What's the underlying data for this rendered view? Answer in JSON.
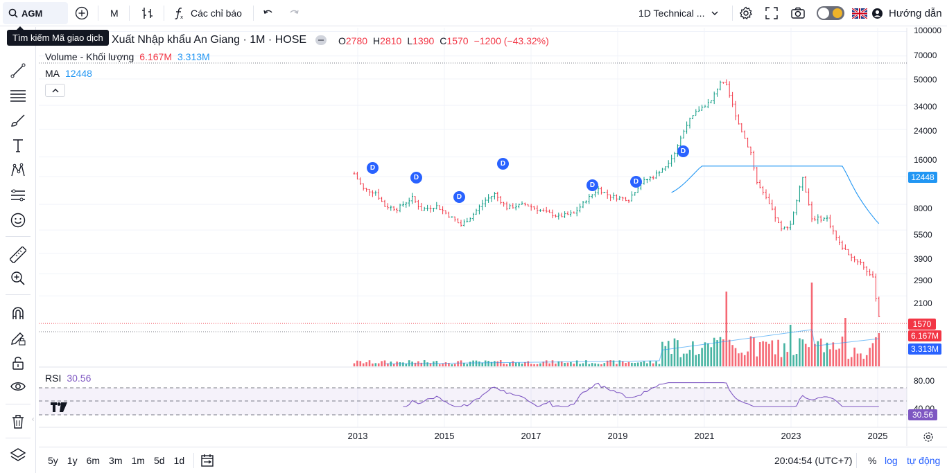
{
  "toolbar": {
    "symbol": "AGM",
    "interval": "M",
    "indicators_label": "Các chỉ báo",
    "layout_label": "1D Technical ...",
    "help_label": "Hướng dẫn"
  },
  "tooltip": {
    "text": "Tìm kiếm Mã giao dịch"
  },
  "header": {
    "title": "Xuất Nhập khẩu An Giang · 1M · HOSE",
    "o_label": "O",
    "o_value": "2780",
    "h_label": "H",
    "h_value": "2810",
    "l_label": "L",
    "l_value": "1390",
    "c_label": "C",
    "c_value": "1570",
    "change": "−1200 (−43.32%)"
  },
  "legend": {
    "volume_label": "Volume - Khối lượng",
    "volume_value": "6.167M",
    "volume_ma_value": "3.313M",
    "ma_label": "MA",
    "ma_value": "12448",
    "rsi_label": "RSI",
    "rsi_value": "30.56"
  },
  "price_axis": {
    "ticks": [
      "100000",
      "70000",
      "50000",
      "34000",
      "24000",
      "16000",
      "8000",
      "5500",
      "3900",
      "2900",
      "2100"
    ],
    "tags": {
      "ma": "12448",
      "price": "1570",
      "volume": "6.167M",
      "volume_ma": "3.313M",
      "rsi": "30.56"
    }
  },
  "rsi_axis": {
    "ticks": [
      "80.00",
      "40.00"
    ]
  },
  "time_axis": {
    "labels": [
      "2013",
      "2015",
      "2017",
      "2019",
      "2021",
      "2023",
      "2025"
    ]
  },
  "bottombar": {
    "ranges": [
      "5y",
      "1y",
      "6m",
      "3m",
      "1m",
      "5d",
      "1d"
    ],
    "time": "20:04:54 (UTC+7)",
    "percent": "%",
    "log": "log",
    "auto": "tự động"
  },
  "badges": [
    "D",
    "D",
    "D",
    "D",
    "D",
    "D",
    "D"
  ],
  "colors": {
    "up": "#089981",
    "down": "#f23645",
    "ma": "#2196f3",
    "rsi": "#7e57c2",
    "accent": "#2962ff"
  }
}
